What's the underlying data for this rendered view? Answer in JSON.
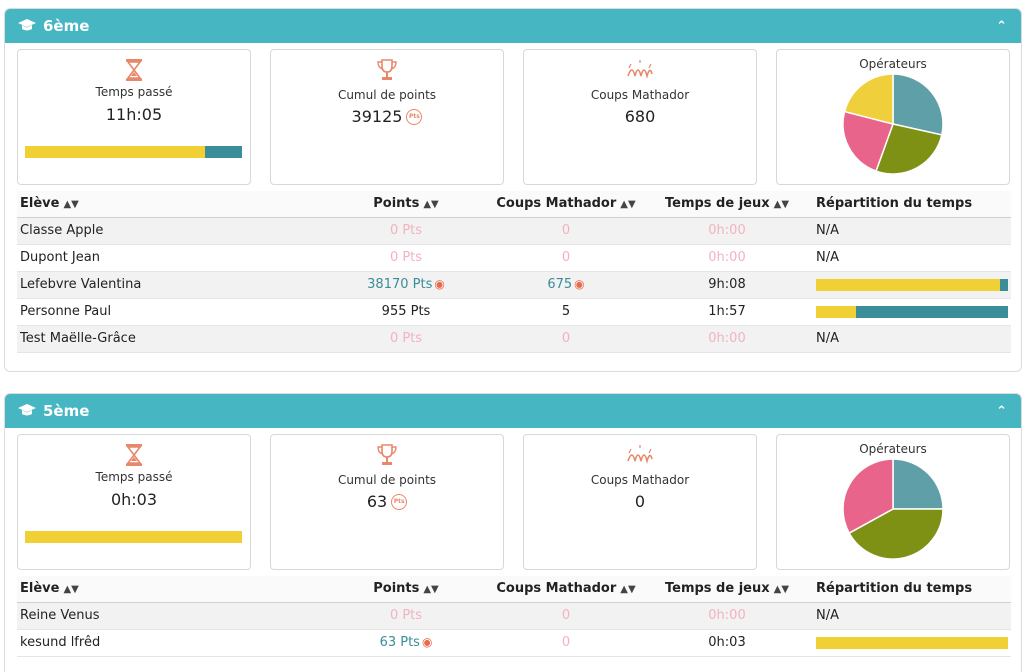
{
  "colors": {
    "header": "#47b6c3",
    "yellow": "#f1d036",
    "teal": "#3a8d99",
    "zero": "#f2b3bf",
    "accent": "#e9876a",
    "pie_teal": "#5f9fa8",
    "pie_olive": "#7f9114",
    "pie_pink": "#e9648a",
    "pie_yellow": "#f0cf3c"
  },
  "columns": {
    "eleve": "Elève",
    "points": "Points",
    "coups": "Coups Mathador",
    "temps": "Temps de jeux",
    "repartition": "Répartition du temps"
  },
  "labels": {
    "temps_passe": "Temps passé",
    "cumul": "Cumul de points",
    "coups": "Coups Mathador",
    "operateurs": "Opérateurs",
    "pts_badge": "Pts"
  },
  "icons": {
    "graduation": "graduation-cap-icon",
    "hourglass": "hourglass-icon",
    "trophy": "trophy-icon",
    "mathador": "mathador-logo-icon",
    "collapse": "chevron-up-icon",
    "sort": "sort-icon",
    "medal": "medal-icon"
  },
  "sections": [
    {
      "title": "6ème",
      "stats": {
        "temps_passe": "11h:05",
        "cumul": "39125",
        "coups": "680"
      },
      "time_split": {
        "yellow": 0.83,
        "teal": 0.17
      },
      "operators": [
        {
          "color": "#5f9fa8",
          "fraction": 0.285
        },
        {
          "color": "#7f9114",
          "fraction": 0.27
        },
        {
          "color": "#e9648a",
          "fraction": 0.235
        },
        {
          "color": "#f0cf3c",
          "fraction": 0.21
        }
      ],
      "rows": [
        {
          "name": "Classe Apple",
          "points": "0 Pts",
          "coups": "0",
          "temps": "0h:00",
          "rep": "N/A",
          "zero": true
        },
        {
          "name": "Dupont Jean",
          "points": "0 Pts",
          "coups": "0",
          "temps": "0h:00",
          "rep": "N/A",
          "zero": true
        },
        {
          "name": "Lefebvre Valentina",
          "points": "38170 Pts",
          "coups": "675",
          "temps": "9h:08",
          "highlight": true,
          "bar": {
            "yellow": 0.96,
            "teal": 0.04
          }
        },
        {
          "name": "Personne Paul",
          "points": "955 Pts",
          "coups": "5",
          "temps": "1h:57",
          "bar": {
            "yellow": 0.21,
            "teal": 0.79
          }
        },
        {
          "name": "Test Maëlle-Grâce",
          "points": "0 Pts",
          "coups": "0",
          "temps": "0h:00",
          "rep": "N/A",
          "zero": true
        }
      ]
    },
    {
      "title": "5ème",
      "stats": {
        "temps_passe": "0h:03",
        "cumul": "63",
        "coups": "0"
      },
      "time_split": {
        "yellow": 1.0,
        "teal": 0.0
      },
      "operators": [
        {
          "color": "#5f9fa8",
          "fraction": 0.25
        },
        {
          "color": "#7f9114",
          "fraction": 0.42
        },
        {
          "color": "#e9648a",
          "fraction": 0.33
        }
      ],
      "rows": [
        {
          "name": "Reine Venus",
          "points": "0 Pts",
          "coups": "0",
          "temps": "0h:00",
          "rep": "N/A",
          "zero": true
        },
        {
          "name": "kesund lfrêd",
          "points": "63 Pts",
          "coups": "0",
          "temps": "0h:03",
          "highlight_points": true,
          "bar": {
            "yellow": 1.0,
            "teal": 0.0
          }
        }
      ]
    }
  ]
}
